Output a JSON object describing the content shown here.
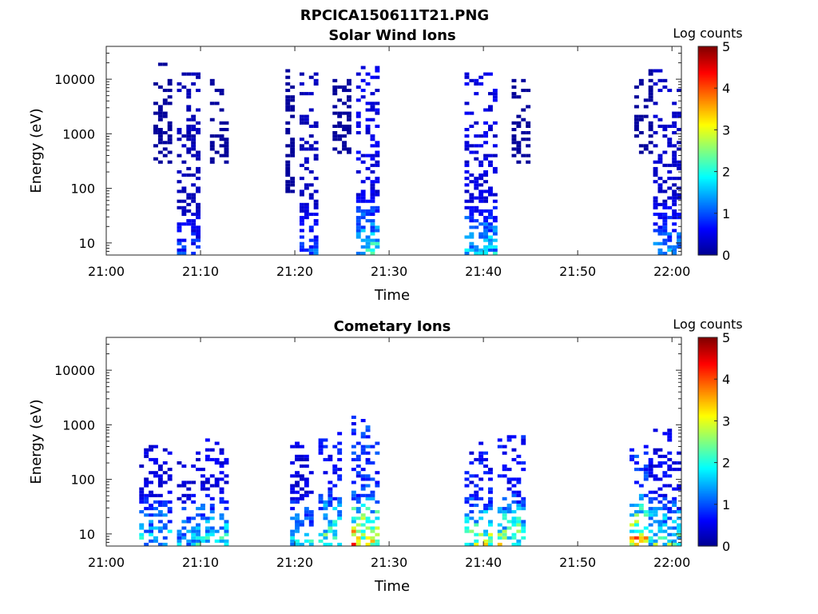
{
  "figure_title": "RPCICA150611T21.PNG",
  "colorbar": {
    "label": "Log counts",
    "ticks": [
      0,
      1,
      2,
      3,
      4,
      5
    ],
    "range": [
      0,
      5
    ],
    "colormap": [
      "#00008f",
      "#0000ff",
      "#0080ff",
      "#00ffff",
      "#80ff80",
      "#ffff00",
      "#ff8000",
      "#ff0000",
      "#800000"
    ]
  },
  "chart_data": [
    {
      "type": "heatmap",
      "title": "Solar Wind Ions",
      "xlabel": "Time",
      "ylabel": "Energy (eV)",
      "y_scale": "log",
      "xlim": [
        "21:00",
        "22:01"
      ],
      "ylim": [
        6,
        40000
      ],
      "xticks": [
        "21:00",
        "21:10",
        "21:20",
        "21:30",
        "21:40",
        "21:50",
        "22:00"
      ],
      "yticks": [
        "10",
        "100",
        "1000",
        "10000"
      ],
      "bursts": [
        {
          "start": "21:05",
          "end": "21:07",
          "emin": 300,
          "emax": 20000,
          "peak_log_counts": 0.3
        },
        {
          "start": "21:07:30",
          "end": "21:10",
          "emin": 6,
          "emax": 15000,
          "peak_log_counts": 1.0
        },
        {
          "start": "21:11",
          "end": "21:13",
          "emin": 300,
          "emax": 10000,
          "peak_log_counts": 0.3
        },
        {
          "start": "21:19",
          "end": "21:20",
          "emin": 80,
          "emax": 15000,
          "peak_log_counts": 0.3
        },
        {
          "start": "21:20:30",
          "end": "21:22:30",
          "emin": 6,
          "emax": 15000,
          "peak_log_counts": 1.2
        },
        {
          "start": "21:24",
          "end": "21:26",
          "emin": 400,
          "emax": 10000,
          "peak_log_counts": 0.3
        },
        {
          "start": "21:26:30",
          "end": "21:29",
          "emin": 6,
          "emax": 20000,
          "peak_log_counts": 2.3
        },
        {
          "start": "21:38",
          "end": "21:41:30",
          "emin": 6,
          "emax": 15000,
          "peak_log_counts": 2.0
        },
        {
          "start": "21:43",
          "end": "21:45",
          "emin": 300,
          "emax": 10000,
          "peak_log_counts": 0.3
        },
        {
          "start": "21:56",
          "end": "21:58",
          "emin": 400,
          "emax": 15000,
          "peak_log_counts": 0.3
        },
        {
          "start": "21:58",
          "end": "22:01",
          "emin": 6,
          "emax": 15000,
          "peak_log_counts": 1.5
        }
      ]
    },
    {
      "type": "heatmap",
      "title": "Cometary Ions",
      "xlabel": "Time",
      "ylabel": "Energy (eV)",
      "y_scale": "log",
      "xlim": [
        "21:00",
        "22:01"
      ],
      "ylim": [
        6,
        40000
      ],
      "xticks": [
        "21:00",
        "21:10",
        "21:20",
        "21:30",
        "21:40",
        "21:50",
        "22:00"
      ],
      "yticks": [
        "10",
        "100",
        "1000",
        "10000"
      ],
      "bursts": [
        {
          "start": "21:03:30",
          "end": "21:07",
          "emin": 6,
          "emax": 400,
          "peak_log_counts": 2.0
        },
        {
          "start": "21:07:30",
          "end": "21:09:30",
          "emin": 6,
          "emax": 300,
          "peak_log_counts": 1.8
        },
        {
          "start": "21:09:30",
          "end": "21:13",
          "emin": 6,
          "emax": 600,
          "peak_log_counts": 2.2
        },
        {
          "start": "21:19:30",
          "end": "21:22",
          "emin": 6,
          "emax": 500,
          "peak_log_counts": 2.0
        },
        {
          "start": "21:22:30",
          "end": "21:25",
          "emin": 6,
          "emax": 800,
          "peak_log_counts": 3.0
        },
        {
          "start": "21:26",
          "end": "21:29",
          "emin": 6,
          "emax": 2000,
          "peak_log_counts": 4.0
        },
        {
          "start": "21:38",
          "end": "21:41",
          "emin": 6,
          "emax": 500,
          "peak_log_counts": 3.0
        },
        {
          "start": "21:41:30",
          "end": "21:44:30",
          "emin": 6,
          "emax": 800,
          "peak_log_counts": 3.0
        },
        {
          "start": "21:55:30",
          "end": "21:57:30",
          "emin": 6,
          "emax": 400,
          "peak_log_counts": 4.0
        },
        {
          "start": "21:57:30",
          "end": "22:01",
          "emin": 6,
          "emax": 800,
          "peak_log_counts": 2.5
        }
      ]
    }
  ]
}
